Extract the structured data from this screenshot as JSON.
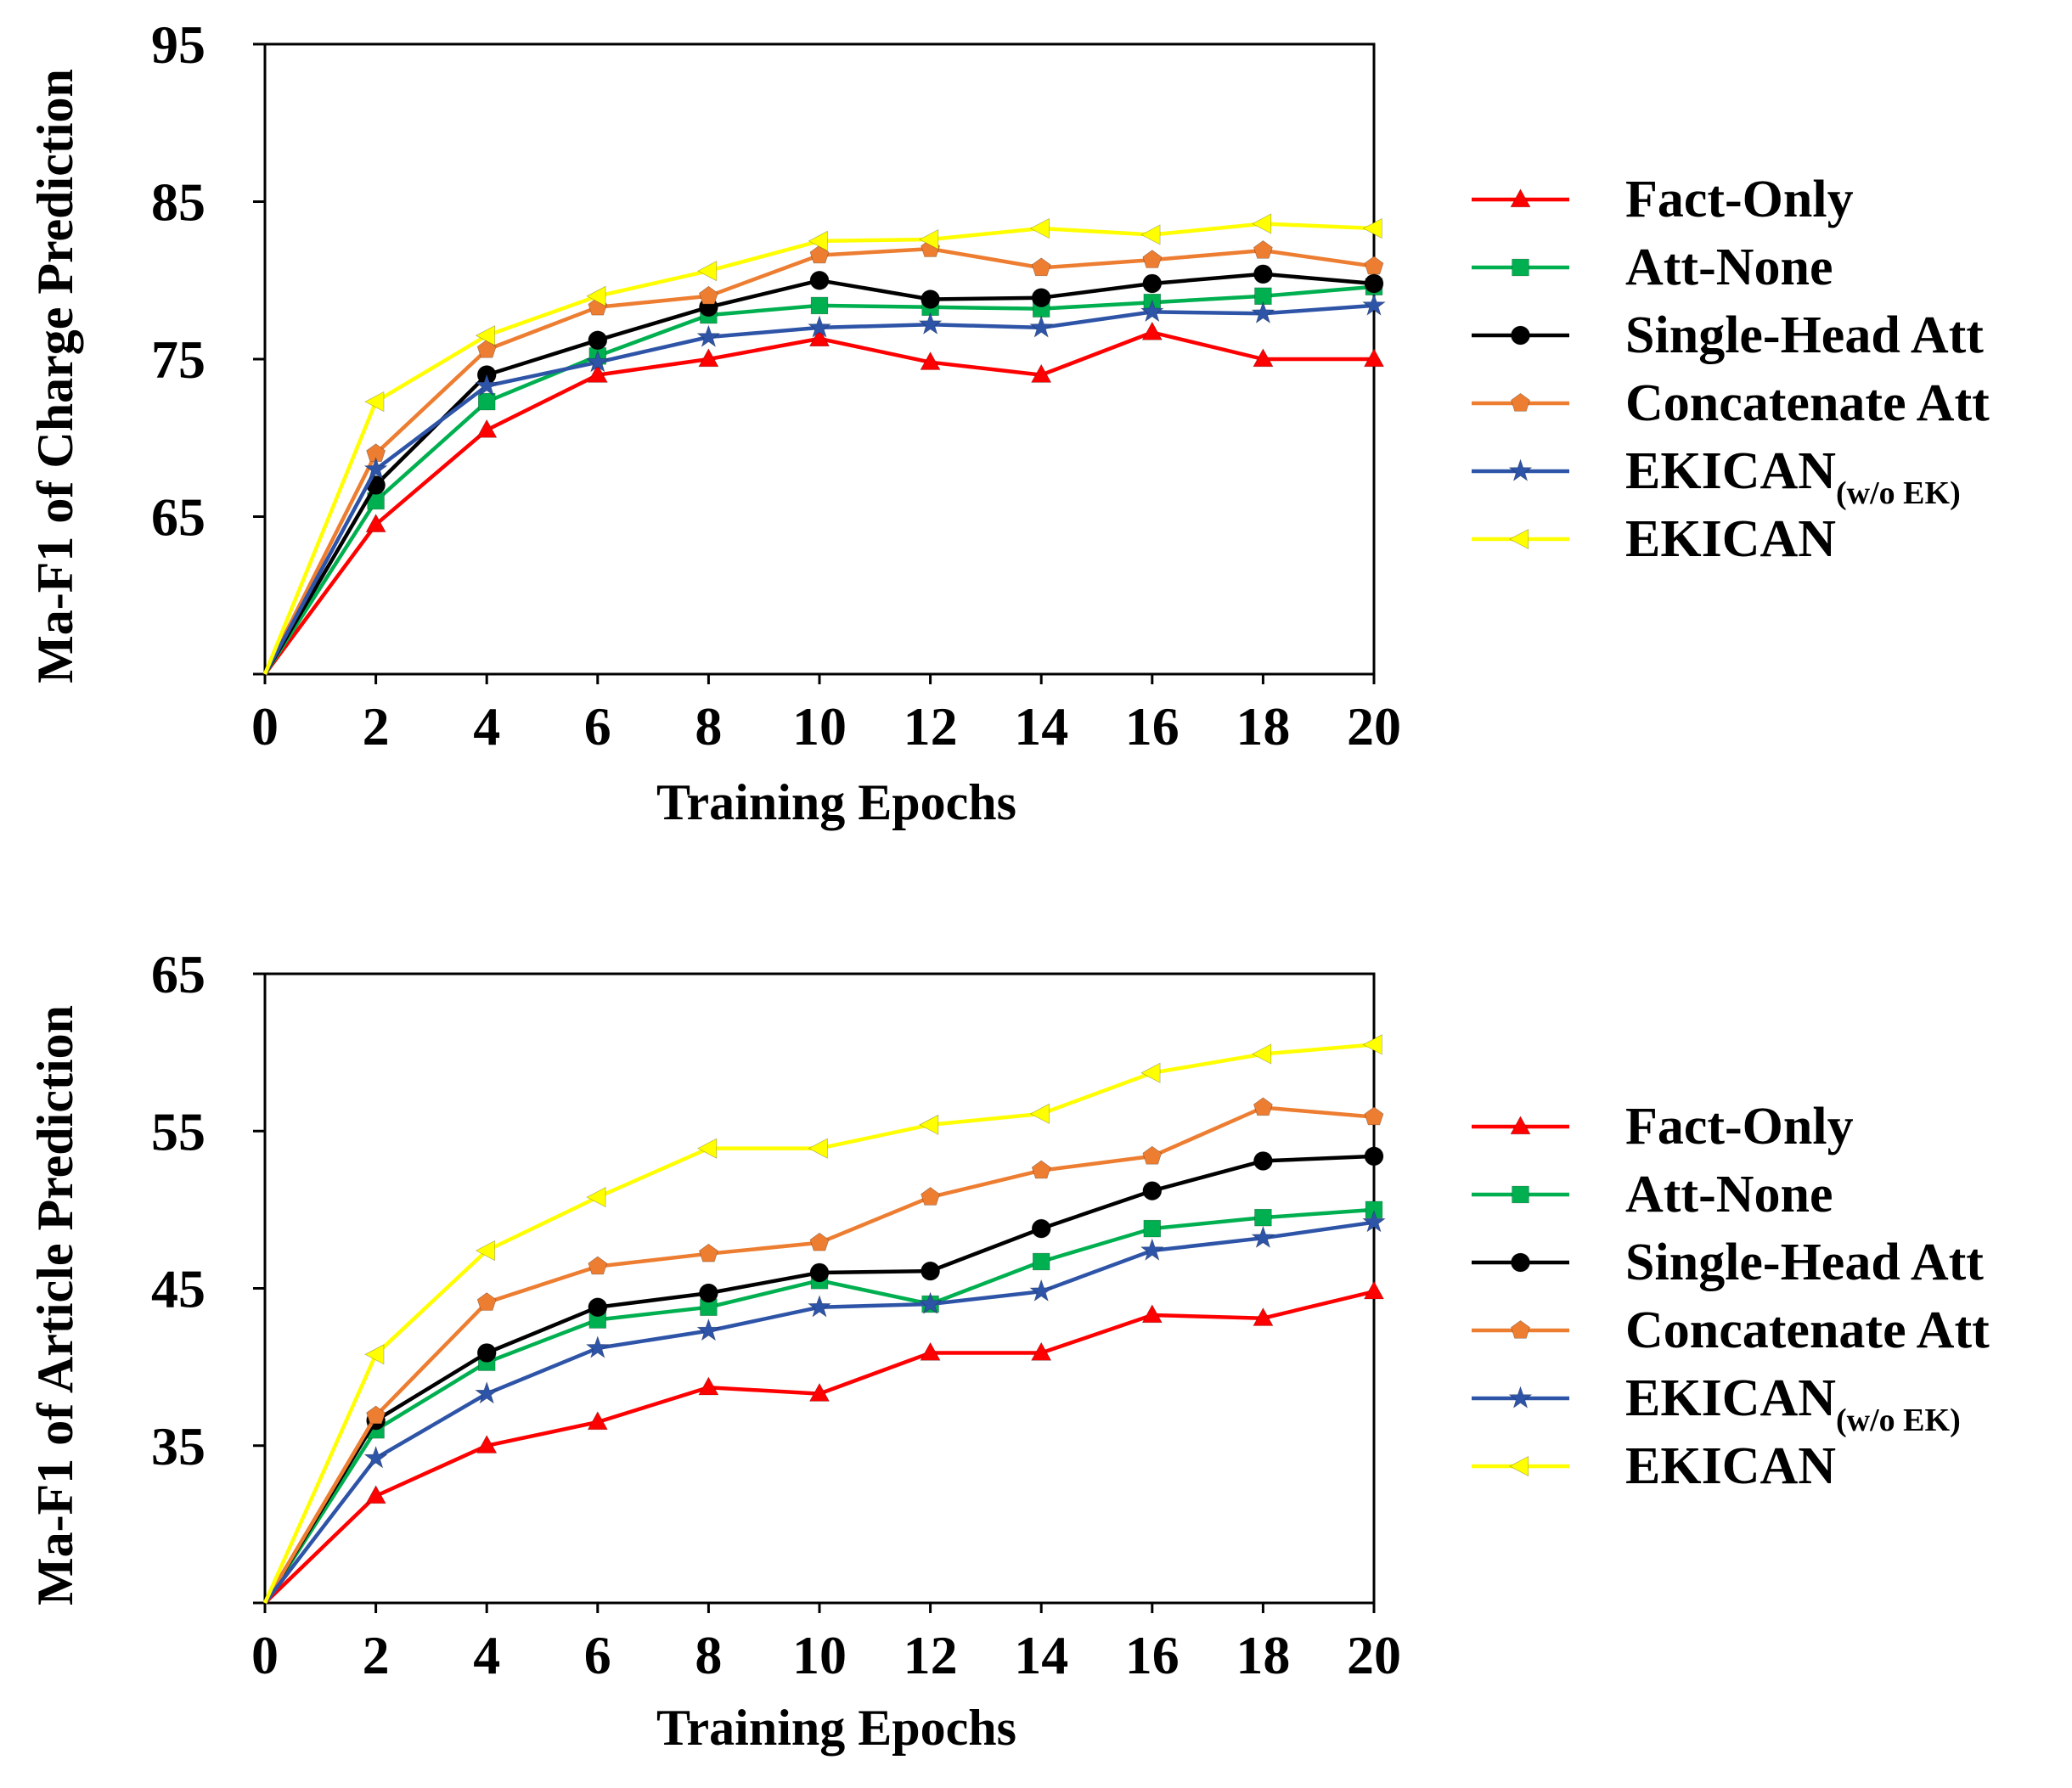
{
  "chart_data": [
    {
      "type": "line",
      "xlabel": "Training Epochs",
      "ylabel": "Ma-F1 of Charge Prediction",
      "x": [
        0,
        2,
        4,
        6,
        8,
        10,
        12,
        14,
        16,
        18,
        20
      ],
      "xticks": [
        "0",
        "2",
        "4",
        "6",
        "8",
        "10",
        "12",
        "14",
        "16",
        "18",
        "20"
      ],
      "ylim": [
        55,
        95
      ],
      "yticks": [
        "65",
        "75",
        "85",
        "95"
      ],
      "grid": false,
      "legend_position": "right",
      "series": [
        {
          "name": "Fact-Only",
          "sub": "",
          "color": "#ff0000",
          "marker": "triangle",
          "values": [
            55,
            64.5,
            70.5,
            74,
            75,
            76.3,
            74.8,
            74,
            76.7,
            75,
            75
          ]
        },
        {
          "name": "Att-None",
          "sub": "",
          "color": "#00b050",
          "marker": "square",
          "values": [
            55,
            66,
            72.3,
            75.2,
            77.8,
            78.4,
            78.3,
            78.2,
            78.6,
            79,
            79.6
          ]
        },
        {
          "name": "Single-Head Att",
          "sub": "",
          "color": "#000000",
          "marker": "circle",
          "values": [
            55,
            67,
            74,
            76.2,
            78.3,
            80,
            78.8,
            78.9,
            79.8,
            80.4,
            79.8
          ]
        },
        {
          "name": "Concatenate Att",
          "sub": "",
          "color": "#ed7d31",
          "marker": "pentagon",
          "values": [
            55,
            69,
            75.6,
            78.3,
            79,
            81.6,
            82,
            80.8,
            81.3,
            81.9,
            80.9
          ]
        },
        {
          "name": "EKICAN",
          "sub": "(w/o EK)",
          "color": "#2e54a8",
          "marker": "star",
          "values": [
            55,
            68,
            73.3,
            74.8,
            76.4,
            77,
            77.2,
            77,
            78,
            77.9,
            78.4
          ]
        },
        {
          "name": "EKICAN",
          "sub": "",
          "color": "#ffff00",
          "marker": "left-triangle",
          "values": [
            55,
            72.3,
            76.5,
            79,
            80.6,
            82.5,
            82.6,
            83.3,
            82.9,
            83.6,
            83.3
          ]
        }
      ]
    },
    {
      "type": "line",
      "xlabel": "Training Epochs",
      "ylabel": "Ma-F1 of Article Prediction",
      "x": [
        0,
        2,
        4,
        6,
        8,
        10,
        12,
        14,
        16,
        18,
        20
      ],
      "xticks": [
        "0",
        "2",
        "4",
        "6",
        "8",
        "10",
        "12",
        "14",
        "16",
        "18",
        "20"
      ],
      "ylim": [
        25,
        65
      ],
      "yticks": [
        "35",
        "45",
        "55",
        "65"
      ],
      "grid": false,
      "legend_position": "right",
      "series": [
        {
          "name": "Fact-Only",
          "sub": "",
          "color": "#ff0000",
          "marker": "triangle",
          "values": [
            25,
            31.8,
            35,
            36.5,
            38.7,
            38.3,
            40.9,
            40.9,
            43.3,
            43.1,
            44.8
          ]
        },
        {
          "name": "Att-None",
          "sub": "",
          "color": "#00b050",
          "marker": "square",
          "values": [
            25,
            36,
            40.3,
            43,
            43.8,
            45.5,
            44,
            46.7,
            48.8,
            49.5,
            50
          ]
        },
        {
          "name": "Single-Head Att",
          "sub": "",
          "color": "#000000",
          "marker": "circle",
          "values": [
            25,
            36.6,
            40.9,
            43.8,
            44.7,
            46,
            46.1,
            48.8,
            51.2,
            53.1,
            53.4
          ]
        },
        {
          "name": "Concatenate Att",
          "sub": "",
          "color": "#ed7d31",
          "marker": "pentagon",
          "values": [
            25,
            36.9,
            44.1,
            46.4,
            47.2,
            47.9,
            50.8,
            52.5,
            53.4,
            56.5,
            55.9
          ]
        },
        {
          "name": "EKICAN",
          "sub": "(w/o EK)",
          "color": "#2e54a8",
          "marker": "star",
          "values": [
            25,
            34.2,
            38.3,
            41.2,
            42.3,
            43.8,
            44,
            44.8,
            47.4,
            48.2,
            49.2
          ]
        },
        {
          "name": "EKICAN",
          "sub": "",
          "color": "#ffff00",
          "marker": "left-triangle",
          "values": [
            25,
            40.8,
            47.4,
            50.8,
            53.9,
            53.9,
            55.4,
            56.1,
            58.7,
            59.9,
            60.5
          ]
        }
      ]
    }
  ]
}
